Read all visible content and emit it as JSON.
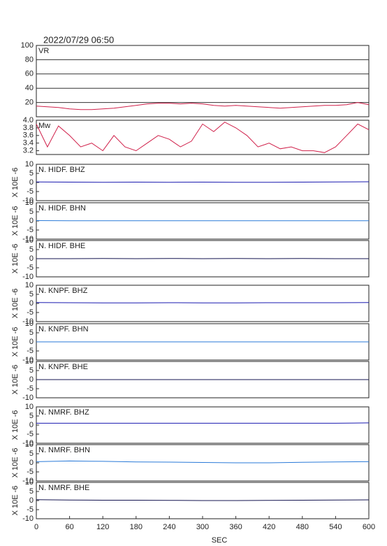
{
  "chart_data": [
    {
      "type": "line",
      "title": "2022/07/29  06:50",
      "label": "VR",
      "color": "#d0204a",
      "grid": true,
      "xlim": [
        0,
        600
      ],
      "ylim": [
        0,
        100
      ],
      "yticks": [
        20,
        40,
        60,
        80,
        100
      ],
      "x": [
        0,
        20,
        40,
        60,
        80,
        100,
        120,
        140,
        160,
        180,
        200,
        220,
        240,
        260,
        280,
        300,
        320,
        340,
        360,
        380,
        400,
        420,
        440,
        460,
        480,
        500,
        520,
        540,
        560,
        580,
        600
      ],
      "values": [
        15,
        14,
        13,
        11,
        10,
        10,
        11,
        12,
        14,
        16,
        18,
        19,
        19,
        18,
        19,
        18,
        16,
        15,
        16,
        15,
        14,
        13,
        12,
        13,
        14,
        15,
        16,
        16,
        17,
        20,
        17
      ]
    },
    {
      "type": "line",
      "label": "Mw",
      "color": "#d0204a",
      "grid": false,
      "xlim": [
        0,
        600
      ],
      "ylim": [
        3.1,
        4.0
      ],
      "yticks": [
        {
          "value": 3.2,
          "label": "3.2"
        },
        3.4,
        3.6,
        3.8,
        {
          "value": 4.0,
          "label": "4.0"
        }
      ],
      "x": [
        0,
        20,
        40,
        60,
        80,
        100,
        120,
        140,
        160,
        180,
        200,
        220,
        240,
        260,
        280,
        300,
        320,
        340,
        360,
        380,
        400,
        420,
        440,
        460,
        480,
        500,
        520,
        540,
        560,
        580,
        600
      ],
      "values": [
        3.9,
        3.3,
        3.85,
        3.6,
        3.3,
        3.4,
        3.2,
        3.6,
        3.3,
        3.2,
        3.4,
        3.6,
        3.5,
        3.3,
        3.45,
        3.9,
        3.7,
        3.95,
        3.8,
        3.6,
        3.3,
        3.4,
        3.25,
        3.3,
        3.2,
        3.2,
        3.15,
        3.3,
        3.6,
        3.9,
        3.75
      ]
    },
    {
      "type": "line",
      "label": "N. HIDF. BHZ",
      "ylabel": "X 10E -6",
      "color": "#1a1ab0",
      "xlim": [
        0,
        600
      ],
      "ylim": [
        -10,
        10
      ],
      "yticks": [
        -10,
        -5,
        0,
        5,
        10
      ],
      "x": [
        0,
        60,
        120,
        180,
        240,
        300,
        360,
        420,
        480,
        540,
        600
      ],
      "values": [
        0.3,
        0.2,
        0.1,
        0.2,
        0.1,
        0.2,
        0.1,
        0.1,
        0.2,
        0.3,
        0.4
      ]
    },
    {
      "type": "line",
      "label": "N. HIDF. BHN",
      "ylabel": "X 10E -6",
      "color": "#2a7ad8",
      "xlim": [
        0,
        600
      ],
      "ylim": [
        -10,
        10
      ],
      "yticks": [
        -10,
        -5,
        0,
        5,
        10
      ],
      "x": [
        0,
        60,
        120,
        180,
        240,
        300,
        360,
        420,
        480,
        540,
        600
      ],
      "values": [
        0.2,
        0.1,
        0.1,
        0.1,
        0.1,
        0.1,
        0.1,
        0.1,
        0.1,
        0.1,
        0.1
      ]
    },
    {
      "type": "line",
      "label": "N. HIDF. BHE",
      "ylabel": "X 10E -6",
      "color": "#141450",
      "xlim": [
        0,
        600
      ],
      "ylim": [
        -10,
        10
      ],
      "yticks": [
        -10,
        -5,
        0,
        5,
        10
      ],
      "x": [
        0,
        60,
        120,
        180,
        240,
        300,
        360,
        420,
        480,
        540,
        600
      ],
      "values": [
        0,
        0,
        0.1,
        0,
        0.1,
        0,
        0.1,
        0,
        0.1,
        0,
        0
      ]
    },
    {
      "type": "line",
      "label": "N. KNPF. BHZ",
      "ylabel": "X 10E -6",
      "color": "#1a1ab0",
      "xlim": [
        0,
        600
      ],
      "ylim": [
        -10,
        10
      ],
      "yticks": [
        -10,
        -5,
        0,
        5,
        10
      ],
      "x": [
        0,
        60,
        120,
        180,
        240,
        300,
        360,
        420,
        480,
        540,
        600
      ],
      "values": [
        0.5,
        0.4,
        0.3,
        0.3,
        0.4,
        0.3,
        0.3,
        0.4,
        0.4,
        0.4,
        0.5
      ]
    },
    {
      "type": "line",
      "label": "N. KNPF. BHN",
      "ylabel": "X 10E -6",
      "color": "#2a7ad8",
      "xlim": [
        0,
        600
      ],
      "ylim": [
        -10,
        10
      ],
      "yticks": [
        -10,
        -5,
        0,
        5,
        10
      ],
      "x": [
        0,
        60,
        120,
        180,
        240,
        300,
        360,
        420,
        480,
        540,
        600
      ],
      "values": [
        0,
        0,
        0,
        0,
        0,
        0,
        0,
        0,
        0,
        0,
        0
      ]
    },
    {
      "type": "line",
      "label": "N. KNPF. BHE",
      "ylabel": "X 10E -6",
      "color": "#141450",
      "xlim": [
        0,
        600
      ],
      "ylim": [
        -10,
        10
      ],
      "yticks": [
        -10,
        -5,
        0,
        5,
        10
      ],
      "x": [
        0,
        60,
        120,
        180,
        240,
        300,
        360,
        420,
        480,
        540,
        600
      ],
      "values": [
        0,
        0,
        0,
        0,
        0,
        0,
        0,
        0,
        0,
        0,
        0
      ]
    },
    {
      "type": "line",
      "label": "N. NMRF. BHZ",
      "ylabel": "X 10E -6",
      "color": "#1a1ab0",
      "xlim": [
        0,
        600
      ],
      "ylim": [
        -10,
        10
      ],
      "yticks": [
        -10,
        -5,
        0,
        5,
        10
      ],
      "x": [
        0,
        60,
        120,
        180,
        240,
        300,
        360,
        420,
        480,
        540,
        600
      ],
      "values": [
        1,
        1,
        1,
        1,
        1,
        1,
        1,
        1,
        1,
        1,
        1.2
      ]
    },
    {
      "type": "line",
      "label": "N. NMRF. BHN",
      "ylabel": "X 10E -6",
      "color": "#2a7ad8",
      "xlim": [
        0,
        600
      ],
      "ylim": [
        -10,
        10
      ],
      "yticks": [
        -10,
        -5,
        0,
        5,
        10
      ],
      "x": [
        0,
        60,
        120,
        180,
        240,
        300,
        360,
        420,
        480,
        540,
        600
      ],
      "values": [
        0.6,
        1,
        0.8,
        0.5,
        0.4,
        0.2,
        0,
        0,
        0.3,
        0.5,
        0.6
      ]
    },
    {
      "type": "line",
      "label": "N. NMRF. BHE",
      "ylabel": "X 10E -6",
      "color": "#141450",
      "xlim": [
        0,
        600
      ],
      "ylim": [
        -10,
        10
      ],
      "yticks": [
        -10,
        -5,
        0,
        5,
        10
      ],
      "x": [
        0,
        60,
        120,
        180,
        240,
        300,
        360,
        420,
        480,
        540,
        600
      ],
      "values": [
        0.5,
        0.3,
        0.2,
        0.2,
        0.1,
        0,
        0,
        0.1,
        0.2,
        0.3,
        0.4
      ],
      "xlabel": "SEC",
      "xticks": [
        0,
        60,
        120,
        180,
        240,
        300,
        360,
        420,
        480,
        540,
        600
      ]
    }
  ]
}
